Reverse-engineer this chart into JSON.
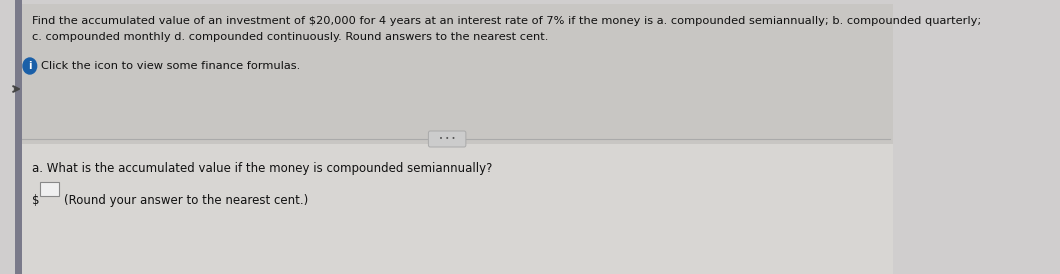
{
  "background_color": "#d0cece",
  "main_bg_color": "#e8e6e3",
  "left_bar_color": "#7a7a8a",
  "top_text_line1": "Find the accumulated value of an investment of $20,000 for 4 years at an interest rate of 7% if the money is a. compounded semiannually; b. compounded quarterly;",
  "top_text_line2": "c. compounded monthly d. compounded continuously. Round answers to the nearest cent.",
  "info_text": "Click the icon to view some finance formulas.",
  "question_text": "a. What is the accumulated value if the money is compounded semiannually?",
  "answer_prompt": "(Round your answer to the nearest cent.)",
  "dollar_sign": "$",
  "top_bg_color": "#c8c6c3",
  "bottom_bg_color": "#d8d6d3",
  "divider_color": "#aaaaaa",
  "text_color": "#111111",
  "info_icon_color": "#1a5fa8",
  "dots_box_color": "#cccccc",
  "dots_box_border": "#aaaaaa",
  "input_box_color": "#f0f0f0",
  "input_box_border": "#888888",
  "left_accent_color": "#5a5a6a",
  "arrow_color": "#444444"
}
